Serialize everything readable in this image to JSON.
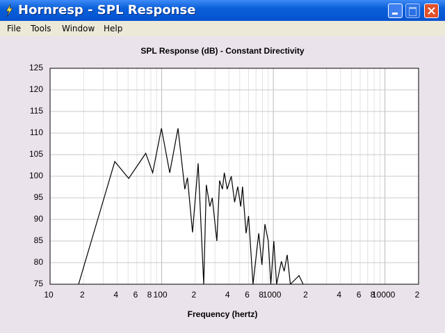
{
  "window": {
    "title": "Hornresp - SPL Response",
    "menu": [
      "File",
      "Tools",
      "Window",
      "Help"
    ]
  },
  "chart_data": {
    "type": "line",
    "title": "SPL Response (dB) - Constant Directivity",
    "x_label": "Frequency (hertz)",
    "log_x": true,
    "grid": true,
    "color": "#000000",
    "x": [
      18,
      38,
      50.6,
      72,
      83,
      99.5,
      118,
      140,
      161,
      170,
      189,
      212,
      238,
      251,
      270,
      284,
      312,
      330,
      350,
      364,
      386,
      420,
      450,
      480,
      510,
      530,
      570,
      600,
      658,
      740,
      790,
      840,
      900,
      950,
      1010,
      1070,
      1180,
      1250,
      1330,
      1420,
      1700,
      1850
    ],
    "values": [
      75,
      103.4,
      99.5,
      105.3,
      100.8,
      111.1,
      100.8,
      111.1,
      97,
      99.7,
      87,
      103,
      75,
      98,
      93,
      95,
      85,
      99,
      97,
      100.8,
      97,
      100,
      94,
      97.6,
      93,
      97.6,
      86.8,
      90.8,
      75,
      86.8,
      79.5,
      88.9,
      85,
      75,
      85,
      75,
      80.3,
      78,
      81.8,
      75,
      77,
      75
    ],
    "xlim": [
      10,
      20000
    ],
    "ylim": [
      75,
      125
    ],
    "xticks": [
      10,
      {
        "value": 20,
        "label": "2"
      },
      {
        "value": 40,
        "label": "4"
      },
      {
        "value": 60,
        "label": "6"
      },
      {
        "value": 80,
        "label": "8"
      },
      100,
      {
        "value": 200,
        "label": "2"
      },
      {
        "value": 400,
        "label": "4"
      },
      {
        "value": 600,
        "label": "6"
      },
      {
        "value": 800,
        "label": "8"
      },
      1000,
      {
        "value": 2000,
        "label": "2"
      },
      {
        "value": 4000,
        "label": "4"
      },
      {
        "value": 6000,
        "label": "6"
      },
      {
        "value": 8000,
        "label": "8"
      },
      10000,
      {
        "value": 20000,
        "label": "2"
      }
    ],
    "minor_xticks": [
      30,
      50,
      70,
      90,
      300,
      500,
      700,
      900,
      3000,
      5000,
      7000,
      9000
    ],
    "yticks": [
      75,
      80,
      85,
      90,
      95,
      100,
      105,
      110,
      115,
      120,
      125
    ]
  }
}
